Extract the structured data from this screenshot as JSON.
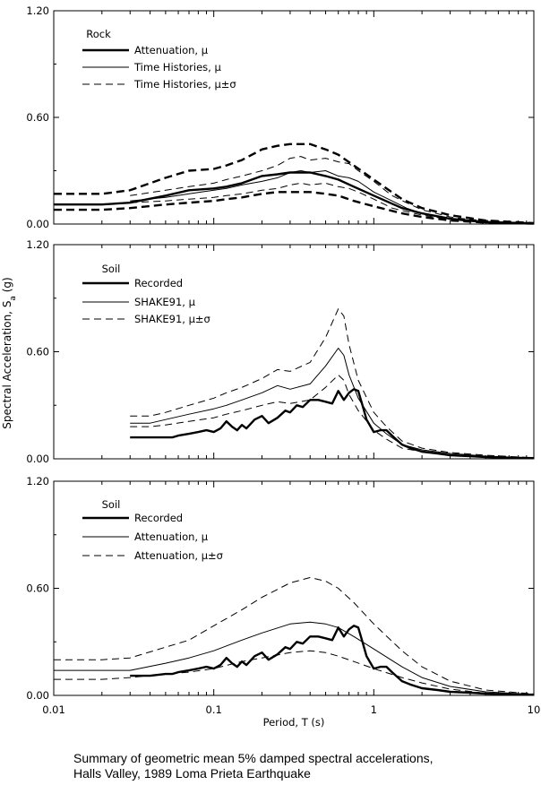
{
  "caption": {
    "line1": "Summary of geometric mean 5% damped spectral accelerations,",
    "line2": "Halls Valley, 1989 Loma Prieta Earthquake"
  },
  "axes": {
    "ylabel_main": "Spectral Acceleration, S",
    "ylabel_sub": "a",
    "ylabel_unit": " (g)",
    "xlabel": "Period, T (s)",
    "x_scale": "log",
    "xlim": [
      0.01,
      10
    ],
    "x_ticks": [
      {
        "v": 0.01,
        "label": "0.01"
      },
      {
        "v": 0.1,
        "label": "0.1"
      },
      {
        "v": 1,
        "label": "1"
      },
      {
        "v": 10,
        "label": "10"
      }
    ],
    "ylim": [
      0,
      1.2
    ],
    "y_ticks": [
      {
        "v": 0,
        "label": "0.00"
      },
      {
        "v": 0.6,
        "label": "0.60"
      },
      {
        "v": 1.2,
        "label": "1.20"
      }
    ]
  },
  "chart_data": [
    {
      "type": "line",
      "site_label": "Rock",
      "legend": [
        "Attenuation, μ",
        "Time Histories, μ",
        "Time Histories, μ±σ"
      ],
      "series": [
        {
          "name": "Attenuation, μ",
          "style": "thick",
          "x": [
            0.01,
            0.02,
            0.03,
            0.05,
            0.07,
            0.1,
            0.12,
            0.15,
            0.2,
            0.25,
            0.3,
            0.4,
            0.5,
            0.6,
            0.75,
            1,
            1.5,
            2,
            3,
            5,
            10
          ],
          "y": [
            0.11,
            0.11,
            0.12,
            0.16,
            0.19,
            0.2,
            0.21,
            0.23,
            0.27,
            0.28,
            0.29,
            0.29,
            0.27,
            0.25,
            0.21,
            0.16,
            0.09,
            0.06,
            0.03,
            0.01,
            0.004
          ]
        },
        {
          "name": "Attenuation, μ+σ",
          "style": "thick-dash",
          "x": [
            0.01,
            0.02,
            0.03,
            0.05,
            0.07,
            0.1,
            0.12,
            0.15,
            0.2,
            0.25,
            0.3,
            0.4,
            0.5,
            0.6,
            0.75,
            1,
            1.5,
            2,
            3,
            5,
            10
          ],
          "y": [
            0.17,
            0.17,
            0.19,
            0.26,
            0.3,
            0.31,
            0.33,
            0.36,
            0.42,
            0.44,
            0.45,
            0.45,
            0.42,
            0.39,
            0.33,
            0.25,
            0.14,
            0.09,
            0.05,
            0.02,
            0.005
          ]
        },
        {
          "name": "Attenuation, μ-σ",
          "style": "thick-dash",
          "x": [
            0.01,
            0.02,
            0.03,
            0.05,
            0.07,
            0.1,
            0.12,
            0.15,
            0.2,
            0.25,
            0.3,
            0.4,
            0.5,
            0.6,
            0.75,
            1,
            1.5,
            2,
            3,
            5,
            10
          ],
          "y": [
            0.08,
            0.08,
            0.09,
            0.11,
            0.12,
            0.13,
            0.14,
            0.15,
            0.17,
            0.18,
            0.18,
            0.18,
            0.17,
            0.16,
            0.13,
            0.1,
            0.06,
            0.04,
            0.02,
            0.008,
            0.002
          ]
        },
        {
          "name": "Time Histories, μ",
          "style": "thin",
          "x": [
            0.03,
            0.05,
            0.07,
            0.1,
            0.12,
            0.15,
            0.2,
            0.25,
            0.3,
            0.35,
            0.4,
            0.5,
            0.6,
            0.7,
            0.8,
            1,
            1.3,
            1.6,
            2,
            3,
            4,
            5,
            7,
            10
          ],
          "y": [
            0.13,
            0.15,
            0.17,
            0.19,
            0.2,
            0.22,
            0.24,
            0.26,
            0.29,
            0.3,
            0.29,
            0.3,
            0.27,
            0.26,
            0.24,
            0.18,
            0.13,
            0.09,
            0.06,
            0.03,
            0.02,
            0.015,
            0.01,
            0.005
          ]
        },
        {
          "name": "Time Histories, μ+σ",
          "style": "thin-dash",
          "x": [
            0.03,
            0.05,
            0.07,
            0.1,
            0.12,
            0.15,
            0.2,
            0.25,
            0.3,
            0.35,
            0.4,
            0.5,
            0.6,
            0.7,
            0.8,
            1,
            1.3,
            1.6,
            2,
            3,
            4,
            5,
            7,
            10
          ],
          "y": [
            0.16,
            0.19,
            0.21,
            0.23,
            0.25,
            0.27,
            0.3,
            0.33,
            0.37,
            0.38,
            0.36,
            0.37,
            0.35,
            0.34,
            0.3,
            0.24,
            0.16,
            0.12,
            0.08,
            0.04,
            0.025,
            0.02,
            0.012,
            0.006
          ]
        },
        {
          "name": "Time Histories, μ-σ",
          "style": "thin-dash",
          "x": [
            0.03,
            0.05,
            0.07,
            0.1,
            0.12,
            0.15,
            0.2,
            0.25,
            0.3,
            0.35,
            0.4,
            0.5,
            0.6,
            0.7,
            0.8,
            1,
            1.3,
            1.6,
            2,
            3,
            4,
            5,
            7,
            10
          ],
          "y": [
            0.12,
            0.13,
            0.14,
            0.15,
            0.16,
            0.17,
            0.19,
            0.2,
            0.22,
            0.23,
            0.22,
            0.23,
            0.21,
            0.2,
            0.18,
            0.14,
            0.09,
            0.07,
            0.05,
            0.025,
            0.015,
            0.012,
            0.008,
            0.004
          ]
        }
      ]
    },
    {
      "type": "line",
      "site_label": "Soil",
      "legend": [
        "Recorded",
        "SHAKE91, μ",
        "SHAKE91, μ±σ"
      ],
      "series": [
        {
          "name": "Recorded",
          "style": "thick",
          "x": [
            0.03,
            0.04,
            0.05,
            0.055,
            0.06,
            0.07,
            0.08,
            0.09,
            0.1,
            0.11,
            0.12,
            0.13,
            0.14,
            0.15,
            0.16,
            0.18,
            0.2,
            0.22,
            0.25,
            0.28,
            0.3,
            0.33,
            0.36,
            0.4,
            0.45,
            0.5,
            0.55,
            0.6,
            0.65,
            0.7,
            0.75,
            0.8,
            0.85,
            0.9,
            1,
            1.1,
            1.2,
            1.3,
            1.5,
            1.7,
            2,
            2.5,
            3,
            4,
            5,
            7,
            10
          ],
          "y": [
            0.12,
            0.12,
            0.12,
            0.12,
            0.13,
            0.14,
            0.15,
            0.16,
            0.15,
            0.17,
            0.21,
            0.18,
            0.16,
            0.19,
            0.17,
            0.22,
            0.24,
            0.2,
            0.23,
            0.27,
            0.26,
            0.3,
            0.29,
            0.33,
            0.33,
            0.32,
            0.31,
            0.38,
            0.33,
            0.37,
            0.39,
            0.38,
            0.3,
            0.22,
            0.15,
            0.16,
            0.16,
            0.13,
            0.08,
            0.06,
            0.04,
            0.03,
            0.02,
            0.015,
            0.01,
            0.006,
            0.004
          ]
        },
        {
          "name": "SHAKE91, μ",
          "style": "thin",
          "x": [
            0.03,
            0.04,
            0.05,
            0.07,
            0.1,
            0.12,
            0.15,
            0.2,
            0.25,
            0.3,
            0.4,
            0.5,
            0.6,
            0.65,
            0.7,
            0.8,
            1,
            1.2,
            1.5,
            2,
            3,
            5,
            10
          ],
          "y": [
            0.2,
            0.2,
            0.22,
            0.25,
            0.28,
            0.3,
            0.33,
            0.37,
            0.41,
            0.39,
            0.42,
            0.52,
            0.62,
            0.58,
            0.47,
            0.34,
            0.2,
            0.14,
            0.08,
            0.05,
            0.03,
            0.015,
            0.005
          ]
        },
        {
          "name": "SHAKE91, μ+σ",
          "style": "thin-dash",
          "x": [
            0.03,
            0.04,
            0.05,
            0.07,
            0.1,
            0.12,
            0.15,
            0.2,
            0.25,
            0.3,
            0.4,
            0.5,
            0.6,
            0.65,
            0.7,
            0.8,
            1,
            1.2,
            1.5,
            2,
            3,
            5,
            10
          ],
          "y": [
            0.24,
            0.24,
            0.26,
            0.3,
            0.34,
            0.37,
            0.4,
            0.45,
            0.5,
            0.49,
            0.54,
            0.68,
            0.84,
            0.8,
            0.64,
            0.44,
            0.26,
            0.18,
            0.1,
            0.06,
            0.035,
            0.02,
            0.006
          ]
        },
        {
          "name": "SHAKE91, μ-σ",
          "style": "thin-dash",
          "x": [
            0.03,
            0.04,
            0.05,
            0.07,
            0.1,
            0.12,
            0.15,
            0.2,
            0.25,
            0.3,
            0.4,
            0.5,
            0.6,
            0.65,
            0.7,
            0.8,
            1,
            1.2,
            1.5,
            2,
            3,
            5,
            10
          ],
          "y": [
            0.18,
            0.18,
            0.19,
            0.21,
            0.23,
            0.25,
            0.27,
            0.3,
            0.32,
            0.31,
            0.33,
            0.4,
            0.47,
            0.44,
            0.36,
            0.27,
            0.16,
            0.11,
            0.06,
            0.04,
            0.02,
            0.01,
            0.004
          ]
        }
      ]
    },
    {
      "type": "line",
      "site_label": "Soil",
      "legend": [
        "Recorded",
        "Attenuation, μ",
        "Attenuation, μ±σ"
      ],
      "series": [
        {
          "name": "Recorded",
          "style": "thick",
          "x": [
            0.03,
            0.04,
            0.05,
            0.055,
            0.06,
            0.07,
            0.08,
            0.09,
            0.1,
            0.11,
            0.12,
            0.13,
            0.14,
            0.15,
            0.16,
            0.18,
            0.2,
            0.22,
            0.25,
            0.28,
            0.3,
            0.33,
            0.36,
            0.4,
            0.45,
            0.5,
            0.55,
            0.6,
            0.65,
            0.7,
            0.75,
            0.8,
            0.85,
            0.9,
            1,
            1.1,
            1.2,
            1.3,
            1.5,
            1.7,
            2,
            2.5,
            3,
            4,
            5,
            7,
            10
          ],
          "y": [
            0.11,
            0.11,
            0.12,
            0.12,
            0.13,
            0.14,
            0.15,
            0.16,
            0.15,
            0.17,
            0.21,
            0.18,
            0.16,
            0.19,
            0.17,
            0.22,
            0.24,
            0.2,
            0.23,
            0.27,
            0.26,
            0.3,
            0.29,
            0.33,
            0.33,
            0.32,
            0.31,
            0.38,
            0.33,
            0.37,
            0.39,
            0.38,
            0.3,
            0.22,
            0.15,
            0.16,
            0.16,
            0.13,
            0.08,
            0.06,
            0.04,
            0.03,
            0.02,
            0.015,
            0.01,
            0.006,
            0.004
          ]
        },
        {
          "name": "Attenuation, μ",
          "style": "thin",
          "x": [
            0.01,
            0.02,
            0.03,
            0.05,
            0.07,
            0.1,
            0.15,
            0.2,
            0.3,
            0.4,
            0.5,
            0.6,
            0.75,
            1,
            1.5,
            2,
            3,
            5,
            10
          ],
          "y": [
            0.14,
            0.14,
            0.14,
            0.18,
            0.21,
            0.25,
            0.31,
            0.35,
            0.4,
            0.41,
            0.4,
            0.38,
            0.33,
            0.26,
            0.16,
            0.1,
            0.05,
            0.02,
            0.005
          ]
        },
        {
          "name": "Attenuation, μ+σ",
          "style": "thin-dash",
          "x": [
            0.01,
            0.02,
            0.03,
            0.05,
            0.07,
            0.1,
            0.15,
            0.2,
            0.3,
            0.4,
            0.5,
            0.6,
            0.75,
            1,
            1.5,
            2,
            3,
            5,
            10
          ],
          "y": [
            0.2,
            0.2,
            0.21,
            0.27,
            0.31,
            0.39,
            0.48,
            0.55,
            0.63,
            0.66,
            0.64,
            0.6,
            0.52,
            0.4,
            0.25,
            0.16,
            0.08,
            0.03,
            0.008
          ]
        },
        {
          "name": "Attenuation, μ-σ",
          "style": "thin-dash",
          "x": [
            0.01,
            0.02,
            0.03,
            0.05,
            0.07,
            0.1,
            0.15,
            0.2,
            0.3,
            0.4,
            0.5,
            0.6,
            0.75,
            1,
            1.5,
            2,
            3,
            5,
            10
          ],
          "y": [
            0.09,
            0.09,
            0.1,
            0.12,
            0.13,
            0.15,
            0.19,
            0.21,
            0.24,
            0.25,
            0.24,
            0.22,
            0.19,
            0.15,
            0.1,
            0.07,
            0.035,
            0.012,
            0.003
          ]
        }
      ]
    }
  ]
}
